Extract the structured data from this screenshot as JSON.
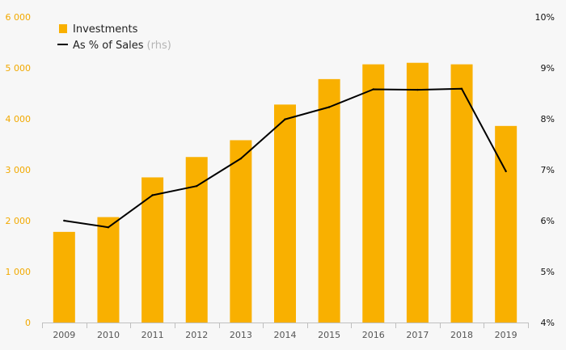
{
  "chart_data": {
    "type": "bar",
    "categories": [
      "2009",
      "2010",
      "2011",
      "2012",
      "2013",
      "2014",
      "2015",
      "2016",
      "2017",
      "2018",
      "2019"
    ],
    "series": [
      {
        "name": "Investments",
        "type": "bar",
        "axis": "left",
        "values": [
          1780,
          2070,
          2850,
          3250,
          3580,
          4280,
          4780,
          5070,
          5100,
          5070,
          3860
        ]
      },
      {
        "name": "As % of Sales",
        "name_suffix": "(rhs)",
        "type": "line",
        "axis": "right",
        "values": [
          6.0,
          5.87,
          6.5,
          6.68,
          7.22,
          7.99,
          8.23,
          8.58,
          8.57,
          8.59,
          6.97
        ]
      }
    ],
    "y_left": {
      "range": [
        0,
        6000
      ],
      "ticks": [
        "0",
        "1 000",
        "2 000",
        "3 000",
        "4 000",
        "5 000",
        "6 000"
      ]
    },
    "y_right": {
      "range": [
        4,
        10
      ],
      "ticks": [
        "4%",
        "5%",
        "6%",
        "7%",
        "8%",
        "9%",
        "10%"
      ]
    },
    "legend_position": "top-left",
    "grid": false,
    "colors": {
      "bar": "#f9b000",
      "line": "#000000",
      "left_axis_text": "#f2a900",
      "background": "#f7f7f7"
    }
  }
}
